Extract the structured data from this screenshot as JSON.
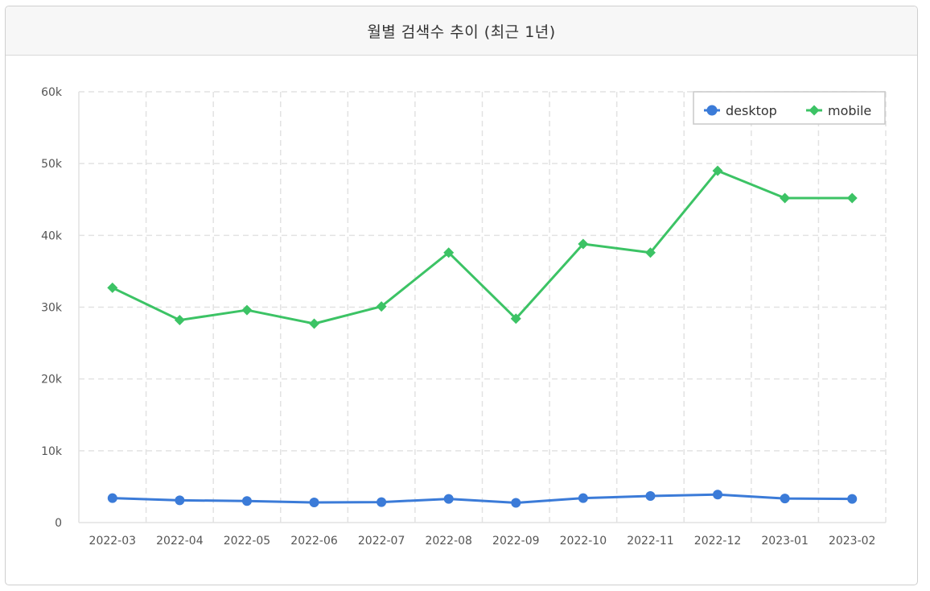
{
  "header": {
    "title": "월별 검색수 추이 (최근 1년)"
  },
  "chart_data": {
    "type": "line",
    "title": "월별 검색수 추이 (최근 1년)",
    "categories": [
      "2022-03",
      "2022-04",
      "2022-05",
      "2022-06",
      "2022-07",
      "2022-08",
      "2022-09",
      "2022-10",
      "2022-11",
      "2022-12",
      "2023-01",
      "2023-02"
    ],
    "y_ticks": [
      "0",
      "10k",
      "20k",
      "30k",
      "40k",
      "50k",
      "60k"
    ],
    "ylim": [
      0,
      60000
    ],
    "grid": true,
    "legend_position": "top-right",
    "series": [
      {
        "name": "desktop",
        "color": "#3b7bd8",
        "marker": "circle",
        "values": [
          3400,
          3100,
          3000,
          2800,
          2850,
          3300,
          2750,
          3400,
          3700,
          3900,
          3350,
          3300
        ]
      },
      {
        "name": "mobile",
        "color": "#3cc365",
        "marker": "diamond",
        "values": [
          32700,
          28200,
          29600,
          27700,
          30100,
          37600,
          28400,
          38800,
          37600,
          49000,
          45200,
          45200
        ]
      }
    ]
  }
}
